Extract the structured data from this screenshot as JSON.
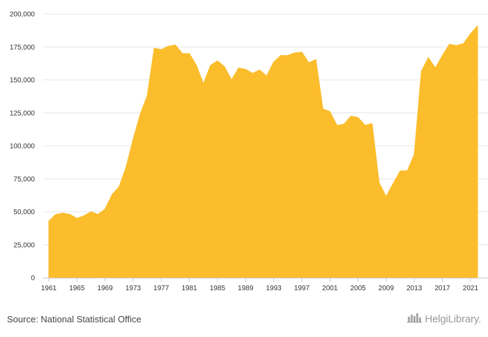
{
  "chart_data": {
    "type": "area",
    "title": "",
    "xlabel": "",
    "ylabel": "",
    "color": "#fbbd2b",
    "grid": true,
    "ylim": [
      0,
      200000
    ],
    "y_ticks": [
      0,
      25000,
      50000,
      75000,
      100000,
      125000,
      150000,
      175000,
      200000
    ],
    "y_tick_labels": [
      "0",
      "25,000",
      "50,000",
      "75,000",
      "100,000",
      "125,000",
      "150,000",
      "175,000",
      "200,000"
    ],
    "x_tick_labels": [
      "1961",
      "1965",
      "1969",
      "1973",
      "1977",
      "1981",
      "1985",
      "1989",
      "1993",
      "1997",
      "2001",
      "2005",
      "2009",
      "2013",
      "2017",
      "2021"
    ],
    "x": [
      1961,
      1962,
      1963,
      1964,
      1965,
      1966,
      1967,
      1968,
      1969,
      1970,
      1971,
      1972,
      1973,
      1974,
      1975,
      1976,
      1977,
      1978,
      1979,
      1980,
      1981,
      1982,
      1983,
      1984,
      1985,
      1986,
      1987,
      1988,
      1989,
      1990,
      1991,
      1992,
      1993,
      1994,
      1995,
      1996,
      1997,
      1998,
      1999,
      2000,
      2001,
      2002,
      2003,
      2004,
      2005,
      2006,
      2007,
      2008,
      2009,
      2010,
      2011,
      2012,
      2013,
      2014,
      2015,
      2016,
      2017,
      2018,
      2019,
      2020,
      2021,
      2022
    ],
    "values": [
      43000,
      48000,
      49000,
      48000,
      45000,
      47000,
      50000,
      48000,
      52000,
      63000,
      69000,
      84000,
      105000,
      124000,
      138000,
      174000,
      173000,
      175500,
      176500,
      170000,
      170000,
      161000,
      147000,
      161000,
      164500,
      160000,
      150000,
      159000,
      158000,
      155000,
      157500,
      153000,
      163500,
      168500,
      168500,
      170500,
      171000,
      163000,
      165500,
      128000,
      126000,
      115500,
      116500,
      122500,
      121500,
      115500,
      117000,
      72000,
      61500,
      71500,
      81000,
      81000,
      93500,
      156500,
      167000,
      159000,
      168500,
      177000,
      176000,
      177500,
      185000,
      191000
    ]
  },
  "footer": {
    "source": "Source: National Statistical Office",
    "logo_text": "HelgiLibrary."
  }
}
